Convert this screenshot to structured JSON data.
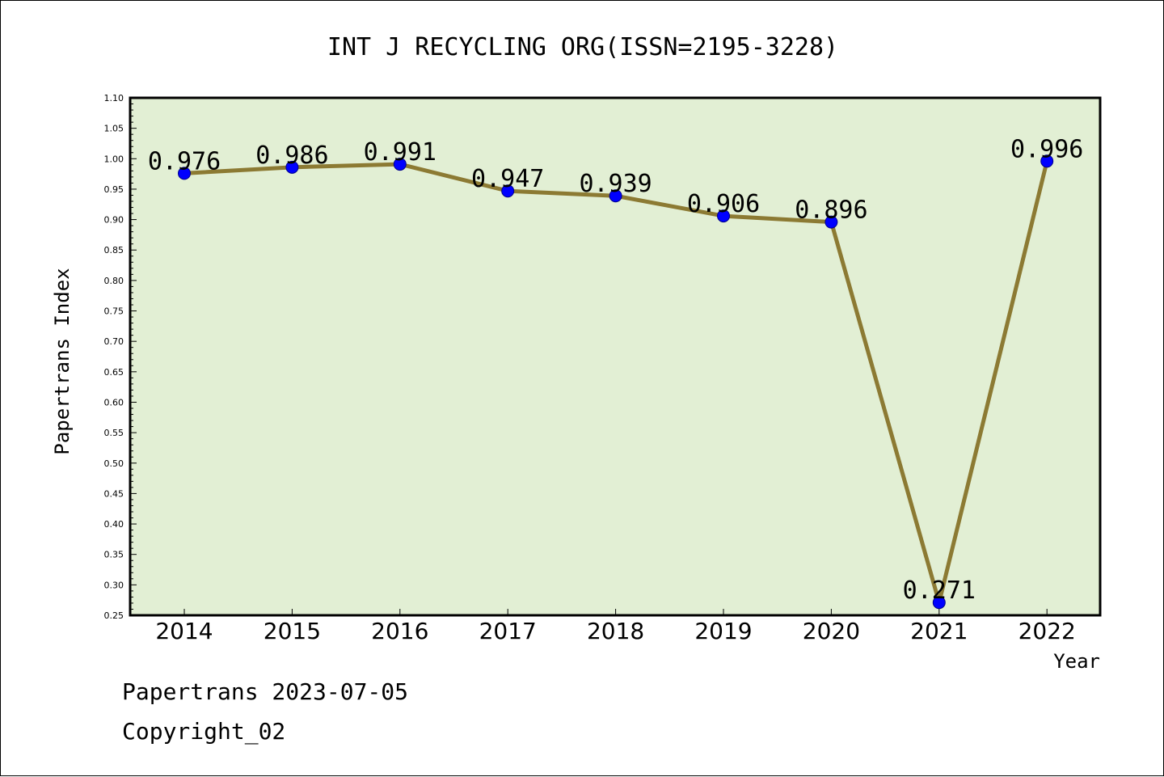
{
  "chart_data": {
    "type": "line",
    "title": "INT J RECYCLING ORG(ISSN=2195-3228)",
    "xlabel": "Year",
    "ylabel": "Papertrans Index",
    "categories": [
      "2014",
      "2015",
      "2016",
      "2017",
      "2018",
      "2019",
      "2020",
      "2021",
      "2022"
    ],
    "values": [
      0.976,
      0.986,
      0.991,
      0.947,
      0.939,
      0.906,
      0.896,
      0.271,
      0.996
    ],
    "data_labels": [
      "0.976",
      "0.986",
      "0.991",
      "0.947",
      "0.939",
      "0.906",
      "0.896",
      "0.271",
      "0.996"
    ],
    "ylim": [
      0.25,
      1.1
    ],
    "yticks": [
      "0.25",
      "0.30",
      "0.35",
      "0.40",
      "0.45",
      "0.50",
      "0.55",
      "0.60",
      "0.65",
      "0.70",
      "0.75",
      "0.80",
      "0.85",
      "0.90",
      "0.95",
      "1.00",
      "1.05",
      "1.10"
    ],
    "grid": false,
    "colors": {
      "plot_background": "#e2efd4",
      "line": "#8c7a33",
      "marker": "#0000ff"
    }
  },
  "footer": {
    "date_line": "Papertrans 2023-07-05",
    "copyright_line": "Copyright_02"
  }
}
